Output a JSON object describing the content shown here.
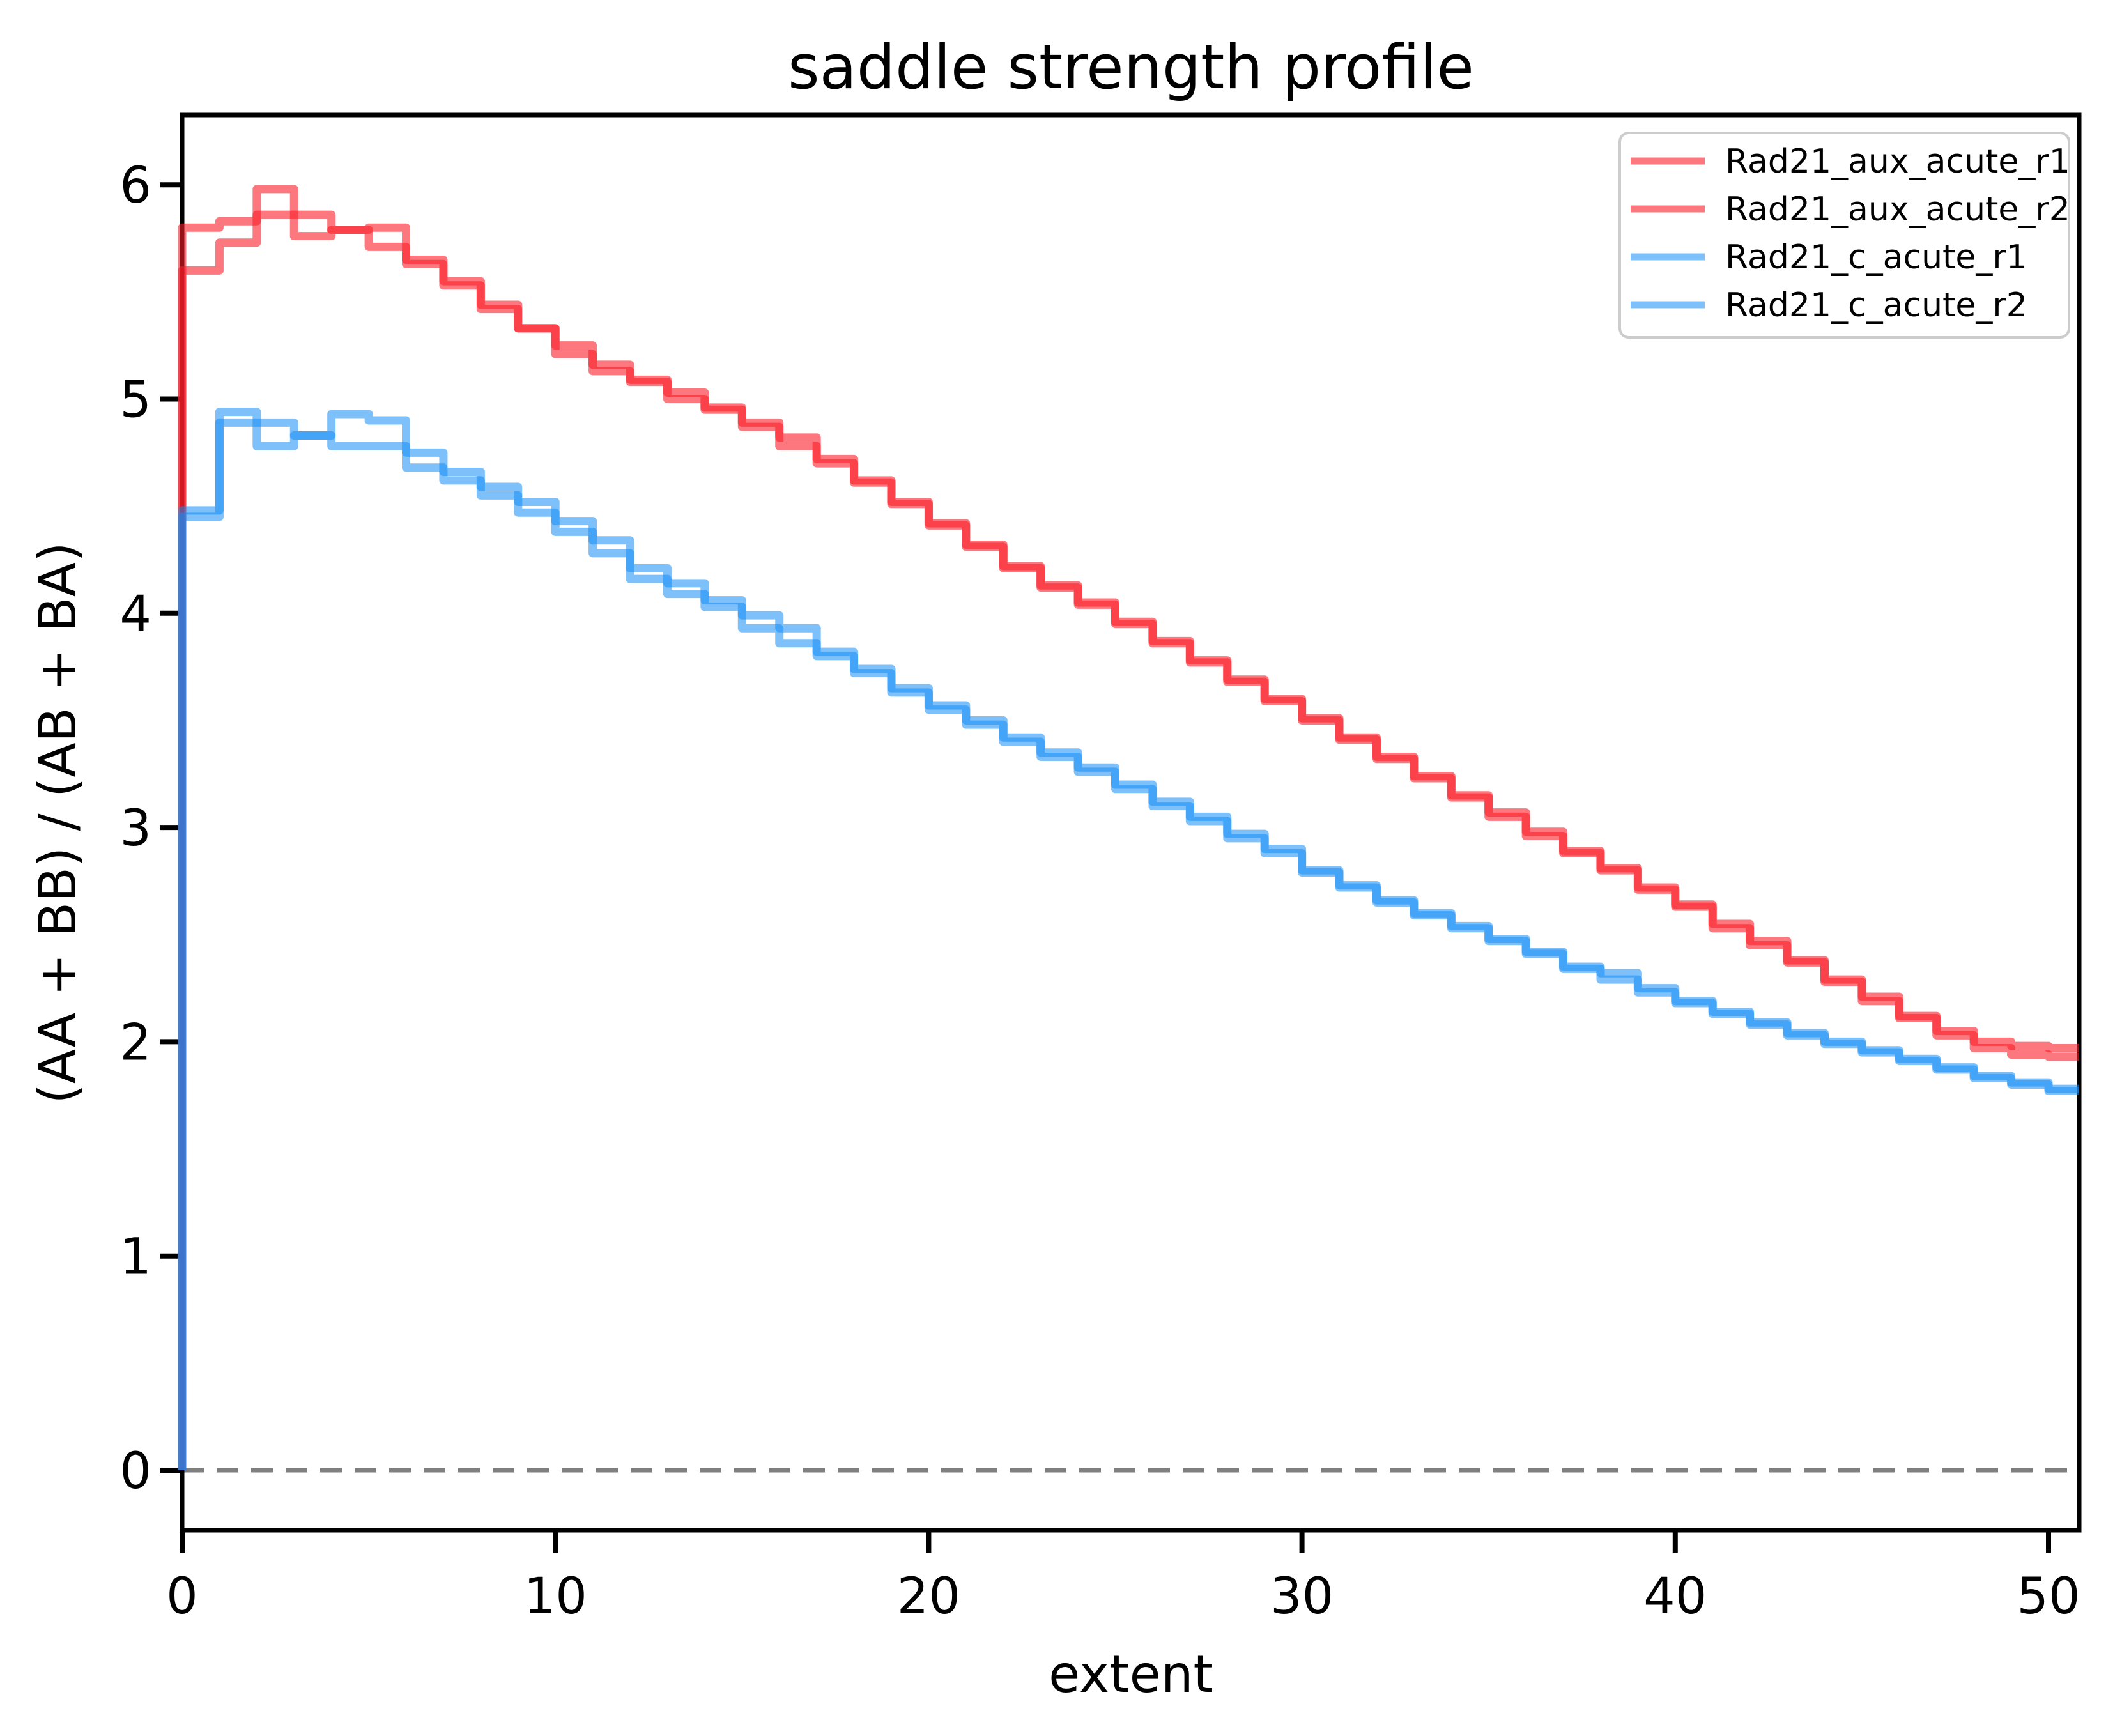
{
  "page": {
    "background": "#ffffff"
  },
  "chart_data": {
    "type": "line",
    "subtype": "step-post",
    "title": "saddle strength profile",
    "xlabel": "extent",
    "ylabel": "(AA + BB) / (AB + BA)",
    "x_ticks": [
      0,
      10,
      20,
      30,
      40,
      50
    ],
    "y_ticks": [
      0,
      1,
      2,
      3,
      4,
      5,
      6
    ],
    "xlim": [
      0,
      50.85
    ],
    "ylim": [
      -0.31,
      6.31
    ],
    "bin_start": 0,
    "bin_width": 1,
    "grid": "off",
    "baseline": {
      "y": 0,
      "style": "dashed",
      "color": "#7f7f7f"
    },
    "legend": {
      "position": "upper right",
      "border_color": "#cccccc",
      "background": "#ffffff"
    },
    "series": [
      {
        "name": "Rad21_aux_acute_r1",
        "color": "rgba(250,30,40,0.6)",
        "legend_color": "#fc787e",
        "values": [
          5.8,
          5.83,
          5.98,
          5.76,
          5.79,
          5.8,
          5.65,
          5.55,
          5.44,
          5.33,
          5.25,
          5.16,
          5.09,
          5.03,
          4.95,
          4.89,
          4.82,
          4.72,
          4.61,
          4.51,
          4.41,
          4.31,
          4.22,
          4.13,
          4.05,
          3.96,
          3.87,
          3.78,
          3.69,
          3.6,
          3.51,
          3.42,
          3.33,
          3.24,
          3.15,
          3.07,
          2.98,
          2.89,
          2.81,
          2.72,
          2.64,
          2.55,
          2.47,
          2.38,
          2.29,
          2.21,
          2.12,
          2.05,
          2.0,
          1.98,
          1.97
        ]
      },
      {
        "name": "Rad21_aux_acute_r2",
        "color": "rgba(250,30,40,0.6)",
        "legend_color": "#fc787e",
        "values": [
          5.6,
          5.73,
          5.86,
          5.86,
          5.79,
          5.71,
          5.63,
          5.53,
          5.42,
          5.33,
          5.21,
          5.13,
          5.08,
          5.0,
          4.96,
          4.87,
          4.78,
          4.7,
          4.62,
          4.52,
          4.42,
          4.32,
          4.21,
          4.12,
          4.04,
          3.95,
          3.86,
          3.77,
          3.68,
          3.59,
          3.5,
          3.41,
          3.32,
          3.23,
          3.14,
          3.05,
          2.96,
          2.88,
          2.8,
          2.71,
          2.63,
          2.53,
          2.45,
          2.37,
          2.28,
          2.19,
          2.11,
          2.03,
          1.97,
          1.94,
          1.93
        ]
      },
      {
        "name": "Rad21_c_acute_r1",
        "color": "rgba(20,140,245,0.55)",
        "legend_color": "#7ec0fa",
        "values": [
          4.48,
          4.94,
          4.78,
          4.83,
          4.93,
          4.9,
          4.68,
          4.62,
          4.55,
          4.47,
          4.38,
          4.28,
          4.21,
          4.14,
          4.06,
          3.99,
          3.93,
          3.82,
          3.74,
          3.65,
          3.57,
          3.5,
          3.42,
          3.35,
          3.28,
          3.2,
          3.12,
          3.05,
          2.97,
          2.9,
          2.79,
          2.72,
          2.65,
          2.59,
          2.53,
          2.47,
          2.41,
          2.34,
          2.29,
          2.23,
          2.18,
          2.13,
          2.08,
          2.03,
          1.99,
          1.95,
          1.91,
          1.87,
          1.83,
          1.8,
          1.77
        ]
      },
      {
        "name": "Rad21_c_acute_r2",
        "color": "rgba(20,140,245,0.55)",
        "legend_color": "#7ec0fa",
        "values": [
          4.45,
          4.89,
          4.89,
          4.83,
          4.78,
          4.78,
          4.75,
          4.66,
          4.59,
          4.52,
          4.43,
          4.34,
          4.16,
          4.09,
          4.03,
          3.93,
          3.86,
          3.8,
          3.72,
          3.63,
          3.55,
          3.48,
          3.4,
          3.33,
          3.26,
          3.18,
          3.1,
          3.03,
          2.95,
          2.88,
          2.8,
          2.73,
          2.66,
          2.6,
          2.54,
          2.48,
          2.42,
          2.35,
          2.32,
          2.25,
          2.19,
          2.14,
          2.09,
          2.04,
          2.0,
          1.96,
          1.92,
          1.88,
          1.84,
          1.81,
          1.78
        ]
      }
    ]
  }
}
